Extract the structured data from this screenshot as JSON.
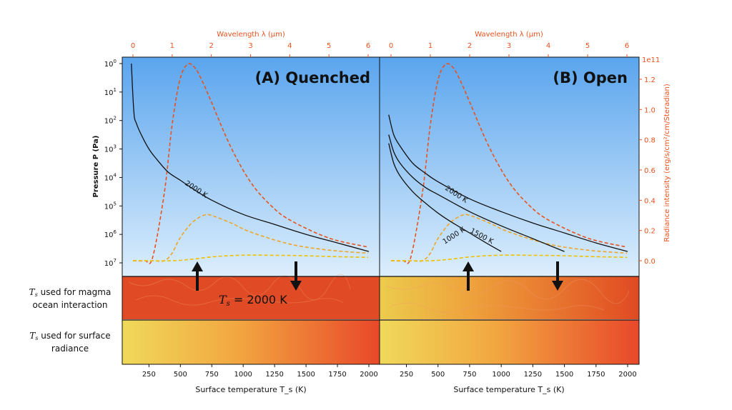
{
  "chart_data": [
    {
      "type": "line",
      "title": "(A) Quenched",
      "ylabel": "Pressure P (Pa)",
      "y_scale": "log",
      "y_inverted": true,
      "yticks": [
        "10^0",
        "10^1",
        "10^2",
        "10^3",
        "10^4",
        "10^5",
        "10^6",
        "10^7"
      ],
      "xlabel": "Surface temperature T_s (K)",
      "xticks": [
        "250",
        "500",
        "750",
        "1000",
        "1250",
        "1500",
        "1750",
        "2000"
      ],
      "xlim": [
        100,
        2000
      ],
      "top_axis": {
        "label": "Wavelength λ (μm)",
        "ticks": [
          "0",
          "1",
          "2",
          "3",
          "4",
          "5",
          "6"
        ],
        "lim": [
          0,
          6
        ]
      },
      "pressure_profiles": [
        {
          "name": "2000 K",
          "T": [
            110,
            130,
            150,
            200,
            250,
            300,
            400,
            500,
            600,
            750,
            1000,
            1250,
            1500,
            1750,
            2000
          ],
          "P_log10": [
            0,
            1.7,
            2.1,
            2.6,
            3.0,
            3.3,
            3.8,
            4.1,
            4.4,
            4.8,
            5.3,
            5.65,
            6.0,
            6.3,
            6.6
          ]
        }
      ],
      "radiance_curves": [
        {
          "name": "2000 K",
          "color": "#e8521e",
          "lambda": [
            0.0,
            0.3,
            0.5,
            0.8,
            1.0,
            1.2,
            1.4,
            1.6,
            1.8,
            2.0,
            2.5,
            3.0,
            3.5,
            4.0,
            5.0,
            6.0
          ],
          "I_1e11": [
            0.0,
            0.0,
            0.02,
            0.45,
            0.9,
            1.2,
            1.3,
            1.27,
            1.17,
            1.05,
            0.75,
            0.52,
            0.37,
            0.27,
            0.15,
            0.09
          ]
        },
        {
          "name": "1500 K",
          "color": "#f0a52b",
          "lambda": [
            0.0,
            0.5,
            0.8,
            1.0,
            1.2,
            1.5,
            1.8,
            2.0,
            2.5,
            3.0,
            4.0,
            5.0,
            6.0
          ],
          "I_1e11": [
            0.0,
            0.0,
            0.0,
            0.05,
            0.15,
            0.25,
            0.3,
            0.3,
            0.25,
            0.19,
            0.11,
            0.07,
            0.05
          ]
        },
        {
          "name": "1000 K",
          "color": "#f0c000",
          "lambda": [
            0.0,
            1.0,
            1.5,
            2.0,
            2.5,
            3.0,
            3.5,
            4.0,
            4.5,
            5.0,
            5.5,
            6.0
          ],
          "I_1e11": [
            0.0,
            0.0,
            0.01,
            0.025,
            0.034,
            0.037,
            0.036,
            0.035,
            0.032,
            0.028,
            0.025,
            0.022
          ]
        }
      ],
      "right_axis": {
        "label": "Radiance intensity (erg/s/cm²/cm/Steradian)",
        "multiplier": "1e11",
        "ticks": [
          "0.0",
          "0.2",
          "0.4",
          "0.6",
          "0.8",
          "1.0",
          "1.2"
        ],
        "lim": [
          0,
          1.3
        ]
      }
    },
    {
      "type": "line",
      "title": "(B) Open",
      "xlabel": "Surface temperature T_s (K)",
      "xticks": [
        "250",
        "500",
        "750",
        "1000",
        "1250",
        "1500",
        "1750",
        "2000"
      ],
      "xlim": [
        100,
        2000
      ],
      "top_axis": {
        "label": "Wavelength λ (μm)",
        "ticks": [
          "0",
          "1",
          "2",
          "3",
          "4",
          "5",
          "6"
        ],
        "lim": [
          0,
          6
        ]
      },
      "pressure_profiles": [
        {
          "name": "2000 K",
          "T": [
            110,
            150,
            200,
            300,
            400,
            500,
            750,
            1000,
            1250,
            1500,
            1750,
            2000
          ],
          "P_log10": [
            1.8,
            2.5,
            2.9,
            3.5,
            3.85,
            4.15,
            4.75,
            5.2,
            5.6,
            5.95,
            6.3,
            6.6
          ]
        },
        {
          "name": "1500 K",
          "T": [
            110,
            150,
            200,
            300,
            400,
            500,
            750,
            1000,
            1250,
            1500
          ],
          "P_log10": [
            2.5,
            3.1,
            3.5,
            4.0,
            4.35,
            4.6,
            5.2,
            5.7,
            6.15,
            6.6
          ]
        },
        {
          "name": "1000 K",
          "T": [
            110,
            150,
            200,
            300,
            400,
            500,
            600,
            750,
            900,
            1000
          ],
          "P_log10": [
            2.8,
            3.5,
            3.95,
            4.5,
            4.9,
            5.25,
            5.55,
            5.95,
            6.35,
            6.6
          ]
        }
      ],
      "radiance_curves": [
        {
          "name": "2000 K",
          "color": "#e8521e",
          "lambda": [
            0.0,
            0.3,
            0.5,
            0.8,
            1.0,
            1.2,
            1.4,
            1.6,
            1.8,
            2.0,
            2.5,
            3.0,
            3.5,
            4.0,
            5.0,
            6.0
          ],
          "I_1e11": [
            0.0,
            0.0,
            0.02,
            0.45,
            0.9,
            1.2,
            1.3,
            1.27,
            1.17,
            1.05,
            0.75,
            0.52,
            0.37,
            0.27,
            0.15,
            0.09
          ]
        },
        {
          "name": "1500 K",
          "color": "#f0a52b",
          "lambda": [
            0.0,
            0.5,
            0.8,
            1.0,
            1.2,
            1.5,
            1.8,
            2.0,
            2.5,
            3.0,
            4.0,
            5.0,
            6.0
          ],
          "I_1e11": [
            0.0,
            0.0,
            0.0,
            0.05,
            0.15,
            0.25,
            0.3,
            0.3,
            0.25,
            0.19,
            0.11,
            0.07,
            0.05
          ]
        },
        {
          "name": "1000 K",
          "color": "#f0c000",
          "lambda": [
            0.0,
            1.0,
            1.5,
            2.0,
            2.5,
            3.0,
            3.5,
            4.0,
            4.5,
            5.0,
            5.5,
            6.0
          ],
          "I_1e11": [
            0.0,
            0.0,
            0.01,
            0.025,
            0.034,
            0.037,
            0.036,
            0.035,
            0.032,
            0.028,
            0.025,
            0.022
          ]
        }
      ],
      "right_axis": {
        "label": "Radiance intensity (erg/s/cm²/cm/Steradian)",
        "multiplier": "1e11",
        "ticks": [
          "0.0",
          "0.2",
          "0.4",
          "0.6",
          "0.8",
          "1.0",
          "1.2"
        ],
        "lim": [
          0,
          1.3
        ]
      }
    }
  ],
  "labels": {
    "row1_line1": "T",
    "row1_sub": "s",
    "row1_line1_rest": " used for magma",
    "row1_line2": "ocean interaction",
    "row2_line1": "T",
    "row2_sub": "s",
    "row2_line1_rest": " used for surface",
    "row2_line2": "radiance",
    "ts_value_T": "T",
    "ts_value_sub": "s",
    "ts_value_rest": " = 2000 K",
    "wavelength_title": "Wavelength λ (μm)",
    "pressure_title": "Pressure P (Pa)",
    "radiance_title": "Radiance intensity (erg/s/cm²/cm/Steradian)",
    "radiance_multiplier": "1e11",
    "xlabel": "Surface temperature T_s (K)"
  },
  "colors": {
    "sky_top": "#5aa5ee",
    "sky_bottom": "#dceefc",
    "magma": "#e0481e",
    "hot_red": "#e8521e",
    "orange": "#f0a52b",
    "yellow": "#f0c000",
    "arrow": "#111111"
  }
}
